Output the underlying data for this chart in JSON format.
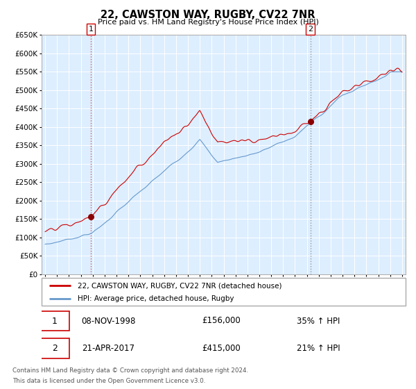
{
  "title": "22, CAWSTON WAY, RUGBY, CV22 7NR",
  "subtitle": "Price paid vs. HM Land Registry's House Price Index (HPI)",
  "legend_line1": "22, CAWSTON WAY, RUGBY, CV22 7NR (detached house)",
  "legend_line2": "HPI: Average price, detached house, Rugby",
  "sale1_date": "08-NOV-1998",
  "sale1_price": 156000,
  "sale1_pct": "35% ↑ HPI",
  "sale2_date": "21-APR-2017",
  "sale2_price": 415000,
  "sale2_pct": "21% ↑ HPI",
  "footnote_line1": "Contains HM Land Registry data © Crown copyright and database right 2024.",
  "footnote_line2": "This data is licensed under the Open Government Licence v3.0.",
  "hpi_color": "#6699cc",
  "price_color": "#cc0000",
  "marker_color": "#8b0000",
  "background_color": "#ddeeff",
  "sale1_x": 1998.85,
  "sale2_x": 2017.3,
  "ylim": [
    0,
    650000
  ],
  "xlim_start": 1994.7,
  "xlim_end": 2025.3
}
